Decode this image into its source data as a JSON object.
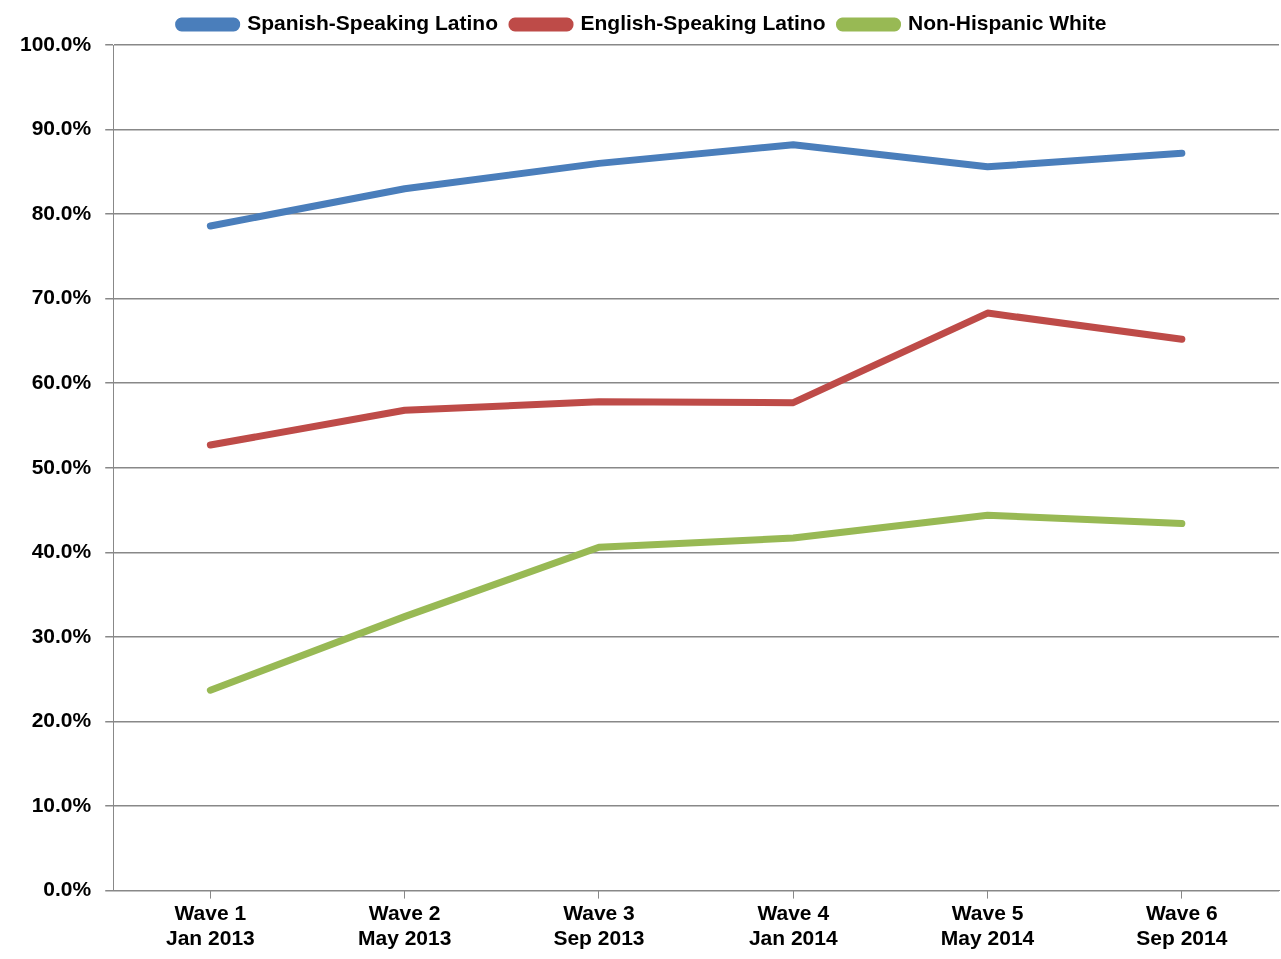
{
  "chart_data": {
    "type": "line",
    "categories": [
      "Wave 1\nJan 2013",
      "Wave 2\nMay 2013",
      "Wave 3\nSep 2013",
      "Wave 4\nJan 2014",
      "Wave 5\nMay 2014",
      "Wave 6\nSep 2014"
    ],
    "series": [
      {
        "name": "Spanish-Speaking Latino",
        "color": "#4a7ebb",
        "values": [
          78.6,
          83.0,
          86.0,
          88.2,
          85.6,
          87.2
        ]
      },
      {
        "name": "English-Speaking Latino",
        "color": "#be4b48",
        "values": [
          52.7,
          56.8,
          57.8,
          57.7,
          68.3,
          65.2
        ]
      },
      {
        "name": "Non-Hispanic White",
        "color": "#98b954",
        "values": [
          23.7,
          32.4,
          40.6,
          41.7,
          44.4,
          43.4
        ]
      }
    ],
    "ylim": [
      0,
      100
    ],
    "yticks": [
      {
        "value": 0,
        "label": "0.0%"
      },
      {
        "value": 10,
        "label": "10.0%"
      },
      {
        "value": 20,
        "label": "20.0%"
      },
      {
        "value": 30,
        "label": "30.0%"
      },
      {
        "value": 40,
        "label": "40.0%"
      },
      {
        "value": 50,
        "label": "50.0%"
      },
      {
        "value": 60,
        "label": "60.0%"
      },
      {
        "value": 70,
        "label": "70.0%"
      },
      {
        "value": 80,
        "label": "80.0%"
      },
      {
        "value": 90,
        "label": "90.0%"
      },
      {
        "value": 100,
        "label": "100.0%"
      }
    ],
    "grid": "y",
    "legend": "top",
    "marker": "none",
    "line_style": "solid"
  }
}
